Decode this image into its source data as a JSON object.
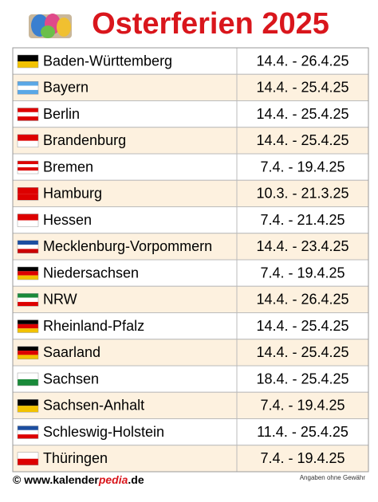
{
  "header": {
    "title": "Osterferien 2025"
  },
  "table": {
    "rows": [
      [
        "Baden-Württemberg",
        "14.4. - 26.4.25"
      ],
      [
        "Bayern",
        "14.4. - 25.4.25"
      ],
      [
        "Berlin",
        "14.4. - 25.4.25"
      ],
      [
        "Brandenburg",
        "14.4. - 25.4.25"
      ],
      [
        "Bremen",
        "7.4. - 19.4.25"
      ],
      [
        "Hamburg",
        "10.3. - 21.3.25"
      ],
      [
        "Hessen",
        "7.4. - 21.4.25"
      ],
      [
        "Mecklenburg-Vorpommern",
        "14.4. - 23.4.25"
      ],
      [
        "Niedersachsen",
        "7.4. - 19.4.25"
      ],
      [
        "NRW",
        "14.4. - 26.4.25"
      ],
      [
        "Rheinland-Pfalz",
        "14.4. - 25.4.25"
      ],
      [
        "Saarland",
        "14.4. - 25.4.25"
      ],
      [
        "Sachsen",
        "18.4. - 25.4.25"
      ],
      [
        "Sachsen-Anhalt",
        "7.4. - 19.4.25"
      ],
      [
        "Schleswig-Holstein",
        "11.4. - 25.4.25"
      ],
      [
        "Thüringen",
        "7.4. - 19.4.25"
      ]
    ]
  },
  "footer": {
    "site_prefix": "© www.kalender",
    "site_highlight": "pedia",
    "site_suffix": ".de",
    "disclaimer": "Angaben ohne Gewähr"
  }
}
